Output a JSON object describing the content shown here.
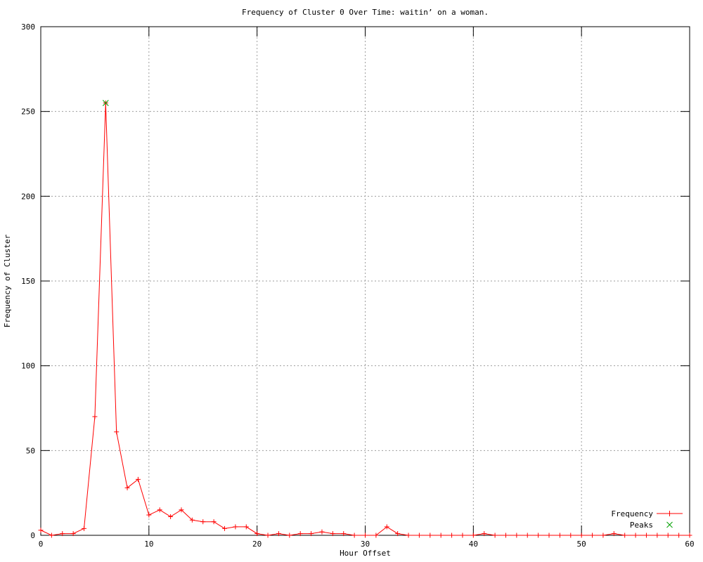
{
  "page": {
    "background": "#ffffff"
  },
  "chart_data": {
    "type": "line",
    "title": "Frequency of Cluster 0 Over Time: waitin’ on a woman.",
    "xlabel": "Hour Offset",
    "ylabel": "Frequency of Cluster",
    "xlim": [
      0,
      60
    ],
    "ylim": [
      0,
      300
    ],
    "x_ticks": [
      0,
      10,
      20,
      30,
      40,
      50,
      60
    ],
    "y_ticks": [
      0,
      50,
      100,
      150,
      200,
      250,
      300
    ],
    "x_gridlines": [
      10,
      20,
      30,
      40,
      50
    ],
    "y_gridlines": [
      50,
      100,
      150,
      200,
      250
    ],
    "grid": true,
    "legend_position": "bottom-right-inside",
    "colors": {
      "frequency": "#ff0000",
      "peaks": "#00a000",
      "grid": "#9e9e9e",
      "border": "#000000",
      "text": "#000000"
    },
    "series": [
      {
        "name": "Frequency",
        "color": "#ff0000",
        "marker": "plus",
        "style": "line-with-markers",
        "x": [
          0,
          1,
          2,
          3,
          4,
          5,
          6,
          7,
          8,
          9,
          10,
          11,
          12,
          13,
          14,
          15,
          16,
          17,
          18,
          19,
          20,
          21,
          22,
          23,
          24,
          25,
          26,
          27,
          28,
          29,
          30,
          31,
          32,
          33,
          34,
          35,
          36,
          37,
          38,
          39,
          40,
          41,
          42,
          43,
          44,
          45,
          46,
          47,
          48,
          49,
          50,
          51,
          52,
          53,
          54,
          55,
          56,
          57,
          58,
          59,
          60
        ],
        "y": [
          3,
          0,
          1,
          1,
          4,
          70,
          255,
          61,
          28,
          33,
          12,
          15,
          11,
          15,
          9,
          8,
          8,
          4,
          5,
          5,
          1,
          0,
          1,
          0,
          1,
          1,
          2,
          1,
          1,
          0,
          0,
          0,
          5,
          1,
          0,
          0,
          0,
          0,
          0,
          0,
          0,
          1,
          0,
          0,
          0,
          0,
          0,
          0,
          0,
          0,
          0,
          0,
          0,
          1,
          0,
          0,
          0,
          0,
          0,
          0,
          0
        ]
      },
      {
        "name": "Peaks",
        "color": "#00a000",
        "marker": "cross",
        "style": "markers-only",
        "x": [
          6
        ],
        "y": [
          255
        ]
      }
    ]
  }
}
